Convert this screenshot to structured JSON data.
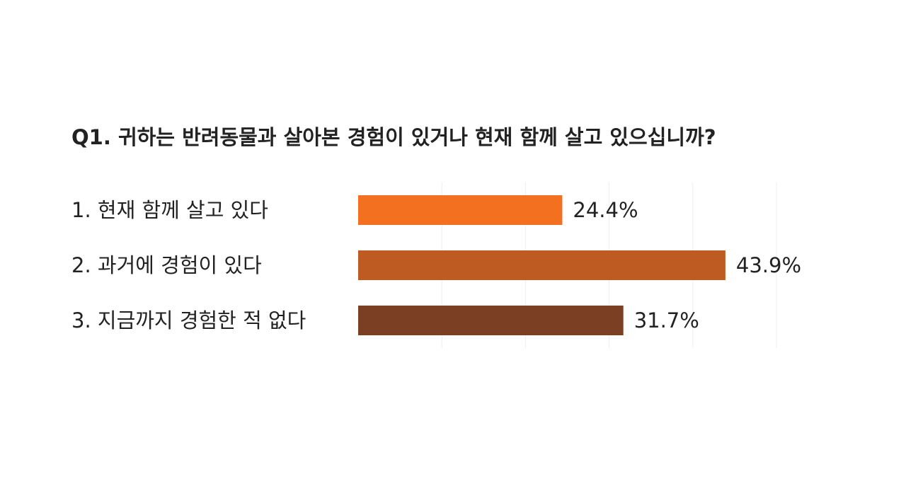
{
  "chart_data": {
    "type": "bar",
    "orientation": "horizontal",
    "title": "Q1. 귀하는 반려동물과 살아본 경험이 있거나 현재 함께 살고 있으십니까?",
    "categories": [
      "1. 현재 함께 살고 있다",
      "2. 과거에 경험이 있다",
      "3. 지금까지 경험한 적 없다"
    ],
    "values": [
      24.4,
      43.9,
      31.7
    ],
    "value_labels": [
      "24.4%",
      "43.9%",
      "31.7%"
    ],
    "bar_colors": [
      "#f37021",
      "#bd5b22",
      "#7b4023"
    ],
    "xlim": [
      0,
      50
    ],
    "grid": true,
    "legend": "none",
    "xlabel": "",
    "ylabel": ""
  }
}
